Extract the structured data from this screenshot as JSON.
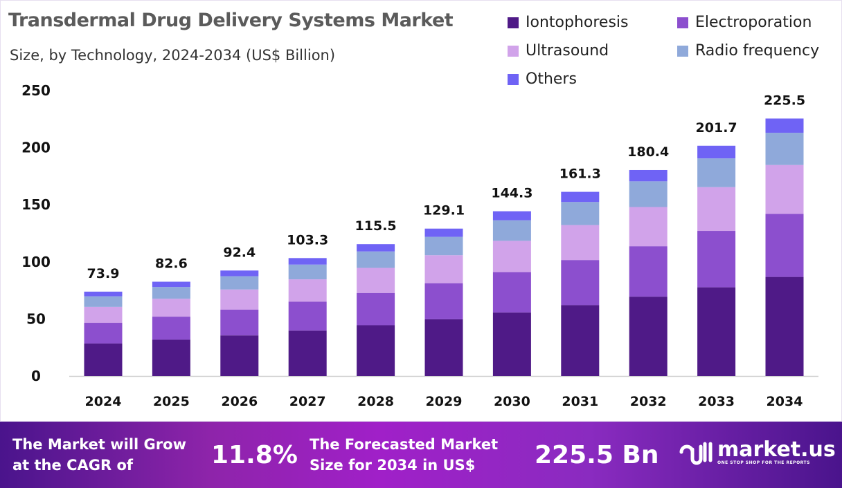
{
  "header": {
    "title": "Transdermal Drug Delivery Systems Market",
    "subtitle": "Size, by Technology, 2024-2034 (US$ Billion)"
  },
  "chart_data": {
    "type": "bar",
    "stacked": true,
    "title": "Transdermal Drug Delivery Systems Market",
    "subtitle": "Size, by Technology, 2024-2034 (US$ Billion)",
    "xlabel": "",
    "ylabel": "",
    "ylim": [
      0,
      250
    ],
    "yticks": [
      0,
      50,
      100,
      150,
      200,
      250
    ],
    "legend_position": "top-right",
    "categories": [
      "2024",
      "2025",
      "2026",
      "2027",
      "2028",
      "2029",
      "2030",
      "2031",
      "2032",
      "2033",
      "2034"
    ],
    "totals": [
      73.9,
      82.6,
      92.4,
      103.3,
      115.5,
      129.1,
      144.3,
      161.3,
      180.4,
      201.7,
      225.5
    ],
    "total_labels": [
      "73.9",
      "82.6",
      "92.4",
      "103.3",
      "115.5",
      "129.1",
      "144.3",
      "161.3",
      "180.4",
      "201.7",
      "225.5"
    ],
    "series": [
      {
        "name": "Iontophoresis",
        "color": "#4f1a87",
        "values": [
          28.5,
          31.8,
          35.6,
          39.8,
          44.5,
          49.7,
          55.6,
          62.1,
          69.5,
          77.7,
          86.8
        ]
      },
      {
        "name": "Electroporation",
        "color": "#8c4fce",
        "values": [
          18.1,
          20.2,
          22.6,
          25.3,
          28.3,
          31.6,
          35.4,
          39.5,
          44.2,
          49.4,
          55.2
        ]
      },
      {
        "name": "Ultrasound",
        "color": "#d1a3ea",
        "values": [
          14.0,
          15.7,
          17.6,
          19.6,
          21.9,
          24.5,
          27.4,
          30.6,
          34.3,
          38.3,
          42.8
        ]
      },
      {
        "name": "Radio frequency",
        "color": "#8fa9da",
        "values": [
          9.2,
          10.3,
          11.6,
          12.9,
          14.4,
          16.1,
          18.0,
          20.2,
          22.5,
          25.2,
          28.2
        ]
      },
      {
        "name": "Others",
        "color": "#6f63f5",
        "values": [
          4.1,
          4.6,
          5.0,
          5.7,
          6.4,
          7.2,
          7.9,
          8.9,
          9.9,
          11.1,
          12.5
        ]
      }
    ]
  },
  "banner": {
    "cagr_text_1": "The Market will Grow",
    "cagr_text_2": "at the CAGR of",
    "cagr_value": "11.8%",
    "forecast_text_1": "The Forecasted Market",
    "forecast_text_2": "Size for 2034 in US$",
    "forecast_value": "225.5 Bn",
    "brand": "market.us",
    "tagline": "ONE STOP SHOP FOR THE REPORTS"
  }
}
